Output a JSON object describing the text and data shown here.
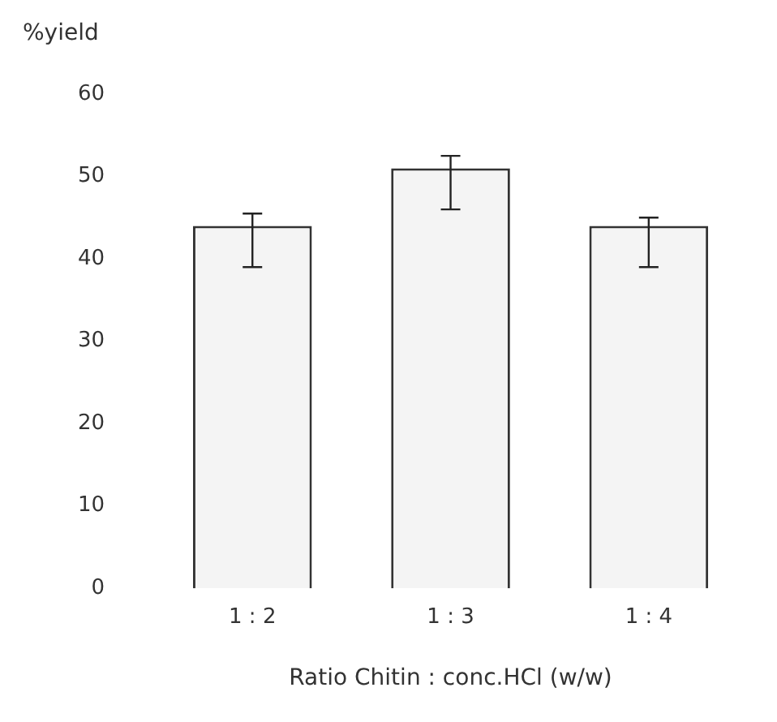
{
  "chart_data": {
    "type": "bar",
    "xlabel": "Ratio Chitin : conc.HCl (w/w)",
    "ylabel": "%yield",
    "categories": [
      "1 : 2",
      "1 : 3",
      "1 : 4"
    ],
    "values": [
      44,
      51,
      44
    ],
    "errors": [
      [
        39,
        45.5
      ],
      [
        46,
        52.5
      ],
      [
        39,
        45
      ]
    ],
    "color": "#f4f4f4",
    "ylim": [
      0,
      60
    ],
    "yticks": [
      0,
      10,
      20,
      30,
      40,
      50,
      60
    ],
    "grid": false,
    "legend": false
  }
}
